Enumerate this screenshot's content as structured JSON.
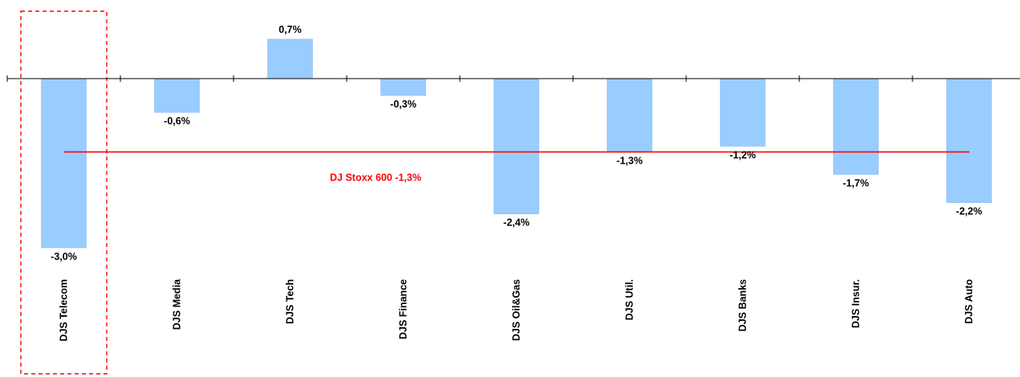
{
  "chart_data": {
    "type": "bar",
    "categories": [
      "DJS Telecom",
      "DJS Media",
      "DJS Tech",
      "DJS Finance",
      "DJS Oil&Gas",
      "DJS Util.",
      "DJS Banks",
      "DJS Insur.",
      "DJS Auto"
    ],
    "values": [
      -3.0,
      -0.6,
      0.7,
      -0.3,
      -2.4,
      -1.3,
      -1.2,
      -1.7,
      -2.2
    ],
    "data_labels": [
      "-3,0%",
      "-0,6%",
      "0,7%",
      "-0,3%",
      "-2,4%",
      "-1,3%",
      "-1,2%",
      "-1,7%",
      "-2,2%"
    ],
    "ylim": [
      -3.0,
      0.7
    ],
    "grid": false,
    "legend": "none",
    "reference_line": {
      "value": -1.3,
      "label": "DJ Stoxx 600 -1,3%"
    },
    "highlight_category": "DJS Telecom",
    "colors": {
      "bar_fill": "#99ccff",
      "bar_stroke": "#8fbff0",
      "reference_line": "#ff0000",
      "reference_label": "#ff0000",
      "highlight_box": "#ff0000",
      "axis": "#000000"
    }
  }
}
